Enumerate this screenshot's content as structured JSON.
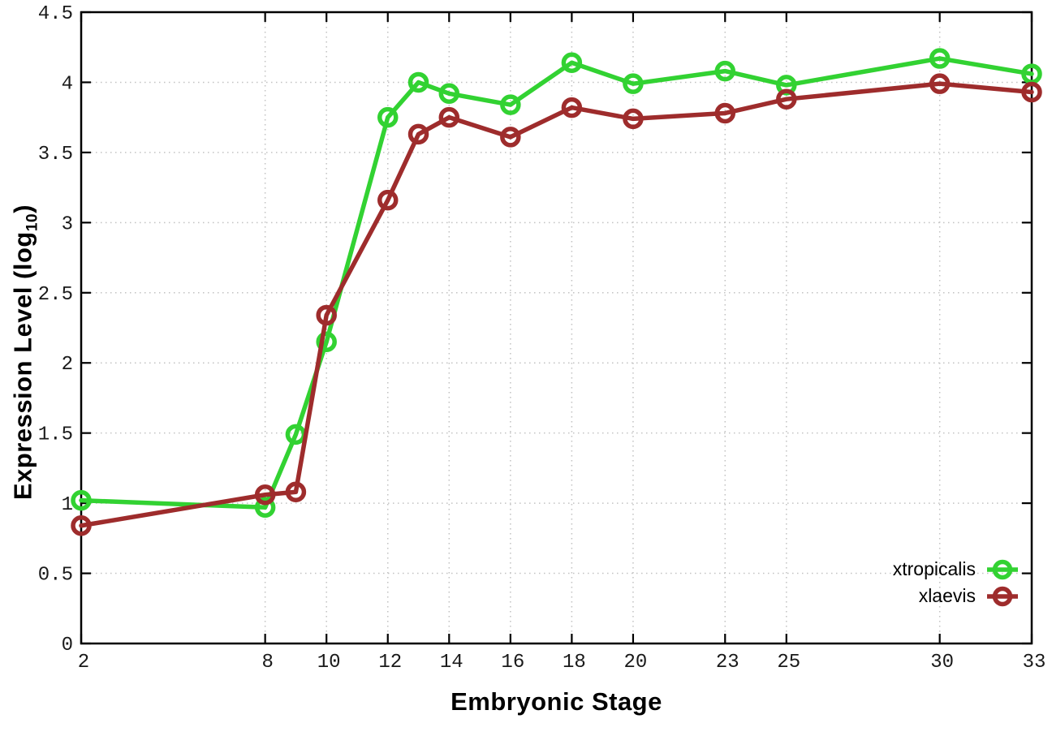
{
  "figure": {
    "background": "#ffffff",
    "border_color": "#000000",
    "grid_color": "#c2c2c2",
    "tick_label_color": "#1a1a1a"
  },
  "chart_data": {
    "type": "line",
    "title": "",
    "xlabel": "Embryonic Stage",
    "ylabel_main": "Expression Level (log",
    "ylabel_sub": "10",
    "ylabel_close": ")",
    "xlim": [
      2,
      33
    ],
    "ylim": [
      0,
      4.5
    ],
    "grid": true,
    "legend_position": "bottom-right",
    "xticks": [
      2,
      8,
      10,
      12,
      14,
      16,
      18,
      20,
      23,
      25,
      30,
      33
    ],
    "yticks": [
      0,
      0.5,
      1,
      1.5,
      2,
      2.5,
      3,
      3.5,
      4,
      4.5
    ],
    "x": [
      2,
      8,
      9,
      10,
      12,
      13,
      14,
      16,
      18,
      20,
      23,
      25,
      30,
      33
    ],
    "series": [
      {
        "name": "xtropicalis",
        "color": "#32d232",
        "values": [
          1.02,
          0.97,
          1.49,
          2.15,
          3.75,
          4.0,
          3.92,
          3.84,
          4.14,
          3.99,
          4.08,
          3.98,
          4.17,
          4.06
        ]
      },
      {
        "name": "xlaevis",
        "color": "#9e2c2c",
        "values": [
          0.84,
          1.06,
          1.08,
          2.34,
          3.16,
          3.63,
          3.75,
          3.61,
          3.82,
          3.74,
          3.78,
          3.88,
          3.99,
          3.93
        ]
      }
    ]
  }
}
